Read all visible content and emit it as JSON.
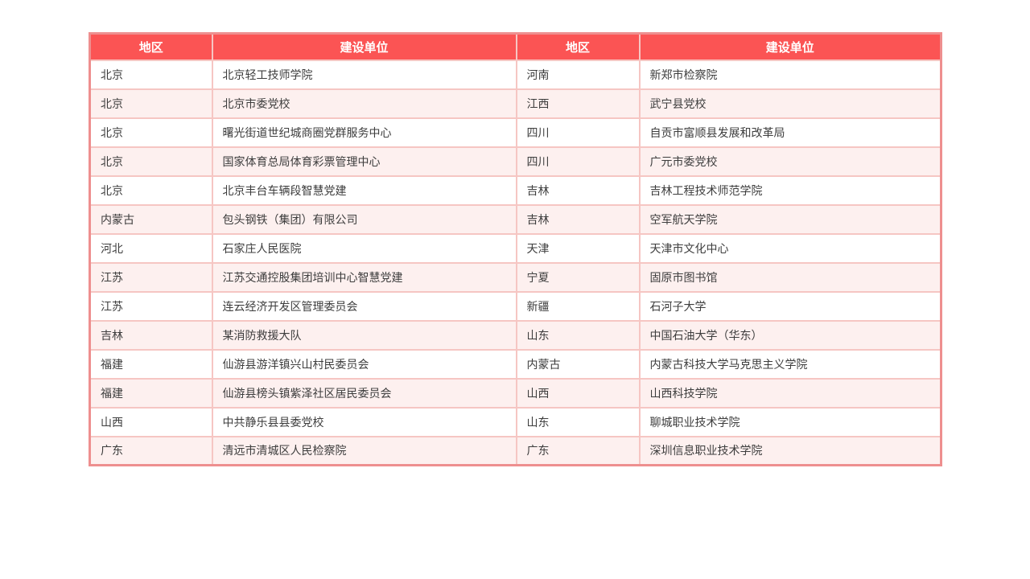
{
  "chart_data": {
    "type": "table",
    "title": "",
    "columns": [
      "地区",
      "建设单位",
      "地区",
      "建设单位"
    ],
    "rows": [
      [
        "北京",
        "北京轻工技师学院",
        "河南",
        "新郑市检察院"
      ],
      [
        "北京",
        "北京市委党校",
        "江西",
        "武宁县党校"
      ],
      [
        "北京",
        "曙光街道世纪城商圈党群服务中心",
        "四川",
        "自贡市富顺县发展和改革局"
      ],
      [
        "北京",
        "国家体育总局体育彩票管理中心",
        "四川",
        "广元市委党校"
      ],
      [
        "北京",
        "北京丰台车辆段智慧党建",
        "吉林",
        "吉林工程技术师范学院"
      ],
      [
        "内蒙古",
        "包头钢铁（集团）有限公司",
        "吉林",
        "空军航天学院"
      ],
      [
        "河北",
        "石家庄人民医院",
        "天津",
        "天津市文化中心"
      ],
      [
        "江苏",
        "江苏交通控股集团培训中心智慧党建",
        "宁夏",
        "固原市图书馆"
      ],
      [
        "江苏",
        "连云经济开发区管理委员会",
        "新疆",
        "石河子大学"
      ],
      [
        "吉林",
        "某消防救援大队",
        "山东",
        "中国石油大学（华东）"
      ],
      [
        "福建",
        "仙游县游洋镇兴山村民委员会",
        "内蒙古",
        "内蒙古科技大学马克思主义学院"
      ],
      [
        "福建",
        "仙游县榜头镇紫泽社区居民委员会",
        "山西",
        "山西科技学院"
      ],
      [
        "山西",
        "中共静乐县县委党校",
        "山东",
        "聊城职业技术学院"
      ],
      [
        "广东",
        "清远市清城区人民检察院",
        "广东",
        "深圳信息职业技术学院"
      ]
    ],
    "layout": {
      "grid": true,
      "alternating_rows": true,
      "header_position": "top"
    }
  },
  "colors": {
    "header_bg": "#fb5454",
    "header_text": "#ffffff",
    "row_bg": "#ffffff",
    "row_alt_bg": "#fdf0ef",
    "border_inner": "#f6c6c3",
    "border_outer": "#ee8f8f",
    "cell_text": "#3d3d3d"
  }
}
